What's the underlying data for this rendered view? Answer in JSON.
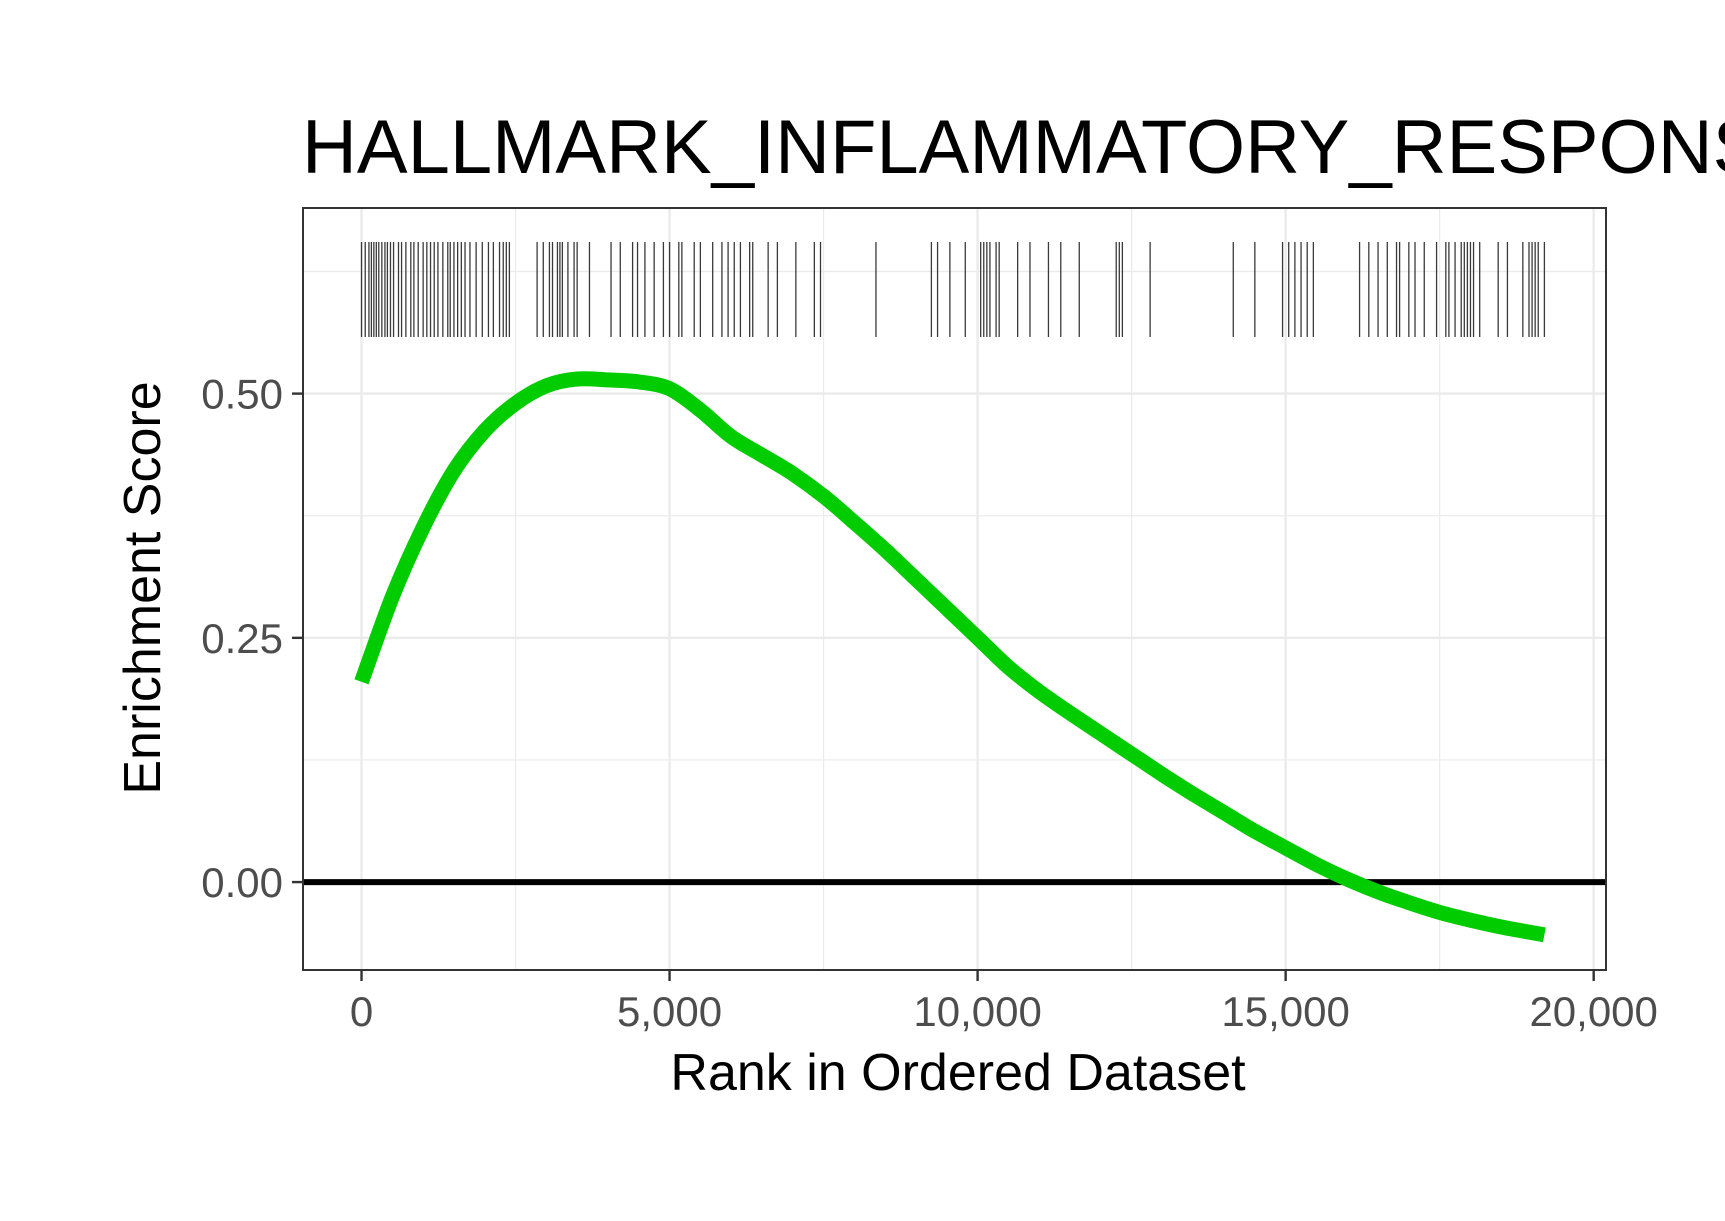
{
  "chart_data": {
    "type": "line",
    "title": "HALLMARK_INFLAMMATORY_RESPONSE",
    "xlabel": "Rank in Ordered Dataset",
    "ylabel": "Enrichment Score",
    "xlim": [
      -950,
      20200
    ],
    "ylim": [
      -0.09,
      0.69
    ],
    "x_ticks": [
      0,
      5000,
      10000,
      15000,
      20000
    ],
    "x_tick_labels": [
      "0",
      "5,000",
      "10,000",
      "15,000",
      "20,000"
    ],
    "y_ticks": [
      0.0,
      0.25,
      0.5
    ],
    "y_tick_labels": [
      "0.00",
      "0.25",
      "0.50"
    ],
    "grid": true,
    "reference_line_y": 0,
    "series": [
      {
        "color": "#00cc00",
        "x": [
          0,
          500,
          1000,
          1500,
          2000,
          2500,
          3000,
          3500,
          4000,
          4500,
          5000,
          5500,
          6000,
          6500,
          7000,
          7500,
          8000,
          8500,
          9000,
          9500,
          10000,
          10500,
          11000,
          11500,
          12000,
          12500,
          13000,
          13500,
          14000,
          14500,
          15000,
          15500,
          16000,
          16500,
          17000,
          17500,
          18000,
          18500,
          19200
        ],
        "y": [
          0.205,
          0.292,
          0.363,
          0.421,
          0.462,
          0.49,
          0.508,
          0.515,
          0.514,
          0.512,
          0.505,
          0.483,
          0.456,
          0.437,
          0.418,
          0.395,
          0.368,
          0.34,
          0.31,
          0.28,
          0.25,
          0.22,
          0.195,
          0.173,
          0.152,
          0.131,
          0.11,
          0.09,
          0.071,
          0.052,
          0.035,
          0.018,
          0.003,
          -0.01,
          -0.021,
          -0.031,
          -0.039,
          -0.046,
          -0.054
        ]
      }
    ],
    "hit_positions": [
      0,
      60,
      120,
      160,
      200,
      240,
      280,
      330,
      380,
      420,
      470,
      520,
      600,
      650,
      720,
      800,
      850,
      920,
      1000,
      1060,
      1120,
      1180,
      1240,
      1320,
      1400,
      1440,
      1500,
      1560,
      1620,
      1680,
      1760,
      1860,
      1960,
      2060,
      2140,
      2240,
      2300,
      2350,
      2400,
      2850,
      2950,
      3050,
      3100,
      3180,
      3220,
      3260,
      3350,
      3450,
      3500,
      3700,
      4050,
      4200,
      4400,
      4480,
      4600,
      4750,
      4900,
      5000,
      5150,
      5200,
      5400,
      5500,
      5700,
      5850,
      5950,
      6050,
      6150,
      6300,
      6350,
      6600,
      6750,
      7050,
      7350,
      7450,
      8350,
      9250,
      9350,
      9550,
      9800,
      10050,
      10100,
      10150,
      10200,
      10300,
      10350,
      10650,
      10850,
      11150,
      11350,
      11650,
      12250,
      12300,
      12350,
      12800,
      14150,
      14500,
      14950,
      15050,
      15150,
      15250,
      15350,
      15450,
      16200,
      16350,
      16500,
      16650,
      16800,
      16850,
      17000,
      17100,
      17250,
      17450,
      17600,
      17650,
      17750,
      17850,
      17900,
      17950,
      18000,
      18050,
      18150,
      18450,
      18600,
      18850,
      18950,
      19000,
      19050,
      19100,
      19200
    ]
  }
}
